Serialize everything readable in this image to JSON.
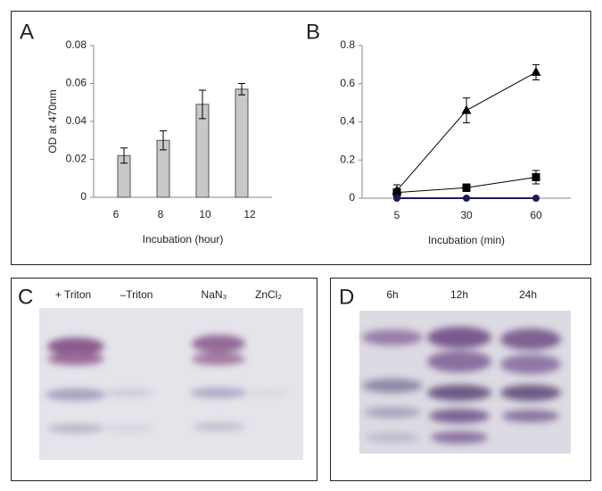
{
  "chart_data": [
    {
      "type": "bar",
      "panel": "A",
      "ylabel": "OD at 470nm",
      "xlabel": "Incubation (hour)",
      "categories": [
        "6",
        "8",
        "10",
        "12"
      ],
      "values": [
        0.022,
        0.03,
        0.049,
        0.057
      ],
      "errors": [
        0.004,
        0.005,
        0.0075,
        0.003
      ],
      "color": "#c8c8c8",
      "ylim": [
        0,
        0.08
      ],
      "yticks": [
        0,
        0.02,
        0.04,
        0.06,
        0.08
      ]
    },
    {
      "type": "line",
      "panel": "B",
      "xlabel": "Incubation (min)",
      "categories": [
        "5",
        "30",
        "60"
      ],
      "series": [
        {
          "marker": "triangle",
          "color": "#000000",
          "values": [
            0.04,
            0.46,
            0.66
          ],
          "errors": [
            0.03,
            0.065,
            0.04
          ]
        },
        {
          "marker": "square",
          "color": "#000000",
          "values": [
            0.03,
            0.055,
            0.11
          ],
          "errors": [
            0.02,
            0.02,
            0.035
          ]
        },
        {
          "marker": "circle",
          "color": "#1c1c5a",
          "values": [
            0,
            0,
            0
          ],
          "errors": [
            0,
            0,
            0
          ]
        }
      ],
      "ylim": [
        0,
        0.8
      ],
      "yticks": [
        0,
        0.2,
        0.4,
        0.6,
        0.8
      ]
    }
  ],
  "gels": [
    {
      "panel": "C",
      "lanes": [
        "+ Triton",
        "–Triton",
        "NaN₃",
        "ZnCl₂"
      ]
    },
    {
      "panel": "D",
      "lanes": [
        "6h",
        "12h",
        "24h"
      ]
    }
  ]
}
